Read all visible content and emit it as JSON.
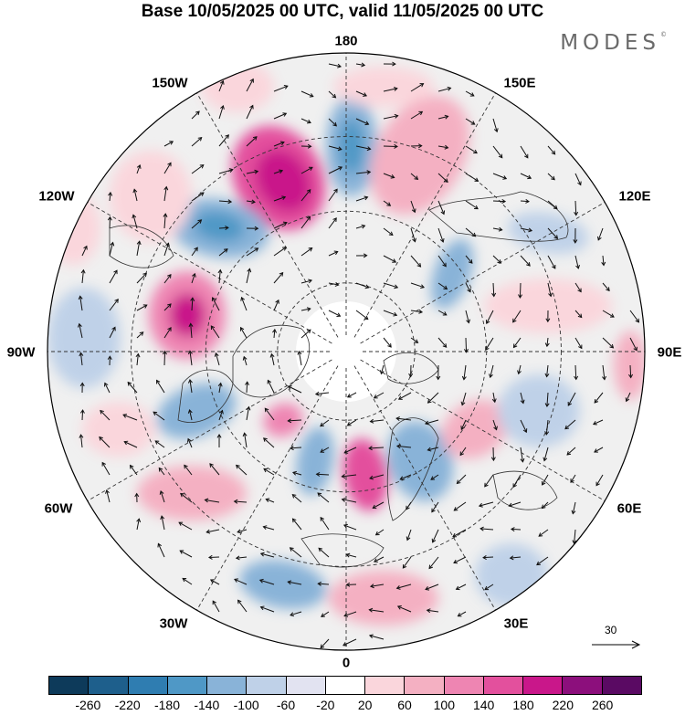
{
  "header": {
    "title": "Base 10/05/2025 00 UTC, valid 11/05/2025 00 UTC",
    "brand": "MODES",
    "brand_mark": "©"
  },
  "map": {
    "projection": "polar-stereographic-north",
    "longitude_labels": [
      "180",
      "150E",
      "120E",
      "90E",
      "60E",
      "30E",
      "0",
      "30W",
      "60W",
      "90W",
      "120W",
      "150W"
    ],
    "reference_vector_label": "30",
    "colors": {
      "land_fill": "#f0f0f0",
      "coastline": "#333333",
      "graticule": "#333333",
      "arrow": "#111111"
    }
  },
  "colorbar": {
    "ticks": [
      "-260",
      "-220",
      "-180",
      "-140",
      "-100",
      "-60",
      "-20",
      "20",
      "60",
      "100",
      "140",
      "180",
      "220",
      "260"
    ],
    "colors": [
      "#0d3a5a",
      "#1e5f8c",
      "#2f7db1",
      "#4f98c6",
      "#89b3d8",
      "#bfd1e8",
      "#e2e3f1",
      "#ffffff",
      "#fad6dc",
      "#f4b0c2",
      "#ee85b2",
      "#e3509d",
      "#c9178a",
      "#8c0f7c",
      "#5a0a63"
    ]
  }
}
